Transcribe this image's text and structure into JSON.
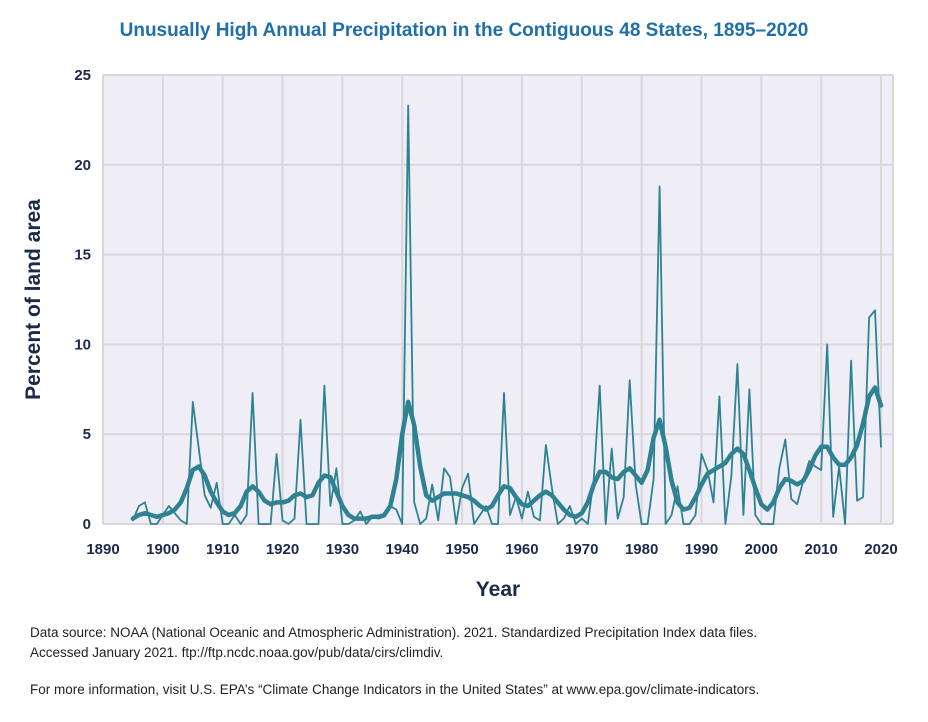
{
  "chart_data": {
    "type": "line",
    "title": "Unusually High Annual Precipitation in the Contiguous 48 States, 1895–2020",
    "xlabel": "Year",
    "ylabel": "Percent of land area",
    "xlim": [
      1890,
      2022
    ],
    "ylim": [
      0,
      25
    ],
    "xticks": [
      1890,
      1900,
      1910,
      1920,
      1930,
      1940,
      1950,
      1960,
      1970,
      1980,
      1990,
      2000,
      2010,
      2020
    ],
    "yticks": [
      0,
      5,
      10,
      15,
      20,
      25
    ],
    "grid": true,
    "colors": {
      "line": "#2e8292",
      "plot_bg": "#efedf6",
      "grid": "#d9d7dc",
      "title": "#1f6fa8"
    },
    "x_start": 1895,
    "series": [
      {
        "values": [
          0.2,
          1.0,
          1.2,
          0,
          0,
          0.5,
          1.0,
          0.6,
          0.2,
          0,
          6.8,
          4.2,
          1.6,
          0.9,
          2.3,
          0,
          0,
          0.5,
          0,
          0.5,
          7.3,
          0,
          0,
          0,
          3.9,
          0.2,
          0,
          0.3,
          5.8,
          0,
          0,
          0,
          7.7,
          1.0,
          3.1,
          0,
          0,
          0.2,
          0.7,
          0,
          0.4,
          0.3,
          0.4,
          1.0,
          0.8,
          0,
          23.3,
          1.2,
          0,
          0.3,
          2.2,
          0.2,
          3.1,
          2.6,
          0,
          2.0,
          2.8,
          0,
          0.5,
          1.0,
          0,
          0,
          7.3,
          0.5,
          1.5,
          0.3,
          1.8,
          0.4,
          0.2,
          4.4,
          2.0,
          0,
          0.3,
          1.0,
          0,
          0.3,
          0,
          2.5,
          7.7,
          0,
          4.2,
          0.3,
          1.5,
          8.0,
          2.2,
          0,
          0,
          2.5,
          18.8,
          0,
          0.5,
          2.1,
          0,
          0,
          0.5,
          3.9,
          3.0,
          1.2,
          7.1,
          0,
          2.7,
          8.9,
          0.5,
          7.5,
          0.5,
          0,
          0,
          0,
          3.1,
          4.7,
          1.4,
          1.1,
          2.4,
          3.5,
          3.2,
          3.0,
          10.0,
          0.4,
          3.2,
          0,
          9.1,
          1.3,
          1.5,
          11.5,
          11.9,
          4.3
        ]
      },
      {
        "values": [
          0.3,
          0.5,
          0.6,
          0.5,
          0.4,
          0.5,
          0.6,
          0.8,
          1.2,
          2.0,
          3.0,
          3.2,
          2.7,
          1.8,
          1.2,
          0.7,
          0.5,
          0.6,
          1.0,
          1.8,
          2.1,
          1.8,
          1.3,
          1.1,
          1.2,
          1.2,
          1.3,
          1.6,
          1.7,
          1.5,
          1.6,
          2.3,
          2.7,
          2.6,
          1.8,
          1.0,
          0.5,
          0.3,
          0.3,
          0.3,
          0.4,
          0.4,
          0.5,
          1.0,
          2.5,
          5.0,
          6.8,
          5.5,
          3.2,
          1.6,
          1.3,
          1.5,
          1.7,
          1.7,
          1.7,
          1.6,
          1.5,
          1.3,
          1.0,
          0.8,
          1.0,
          1.6,
          2.1,
          2.0,
          1.5,
          1.1,
          1.0,
          1.3,
          1.6,
          1.8,
          1.6,
          1.2,
          0.8,
          0.5,
          0.4,
          0.6,
          1.2,
          2.2,
          2.9,
          2.9,
          2.6,
          2.5,
          2.9,
          3.1,
          2.7,
          2.3,
          3.0,
          4.8,
          5.8,
          4.3,
          2.4,
          1.2,
          0.8,
          0.9,
          1.5,
          2.2,
          2.8,
          3.0,
          3.2,
          3.4,
          3.9,
          4.2,
          3.9,
          3.0,
          2.0,
          1.1,
          0.8,
          1.2,
          2.0,
          2.5,
          2.4,
          2.2,
          2.4,
          3.0,
          3.8,
          4.3,
          4.3,
          3.7,
          3.3,
          3.3,
          3.7,
          4.4,
          5.6,
          7.1,
          7.6,
          6.6
        ]
      }
    ]
  },
  "notes": {
    "source_line1": "Data source: NOAA (National Oceanic and Atmospheric Administration). 2021. Standardized Precipitation Index data files.",
    "source_line2": "Accessed January 2021. ftp://ftp.ncdc.noaa.gov/pub/data/cirs/climdiv.",
    "more_info": "For more information, visit U.S. EPA’s “Climate Change Indicators in the United States” at www.epa.gov/climate-indicators."
  }
}
